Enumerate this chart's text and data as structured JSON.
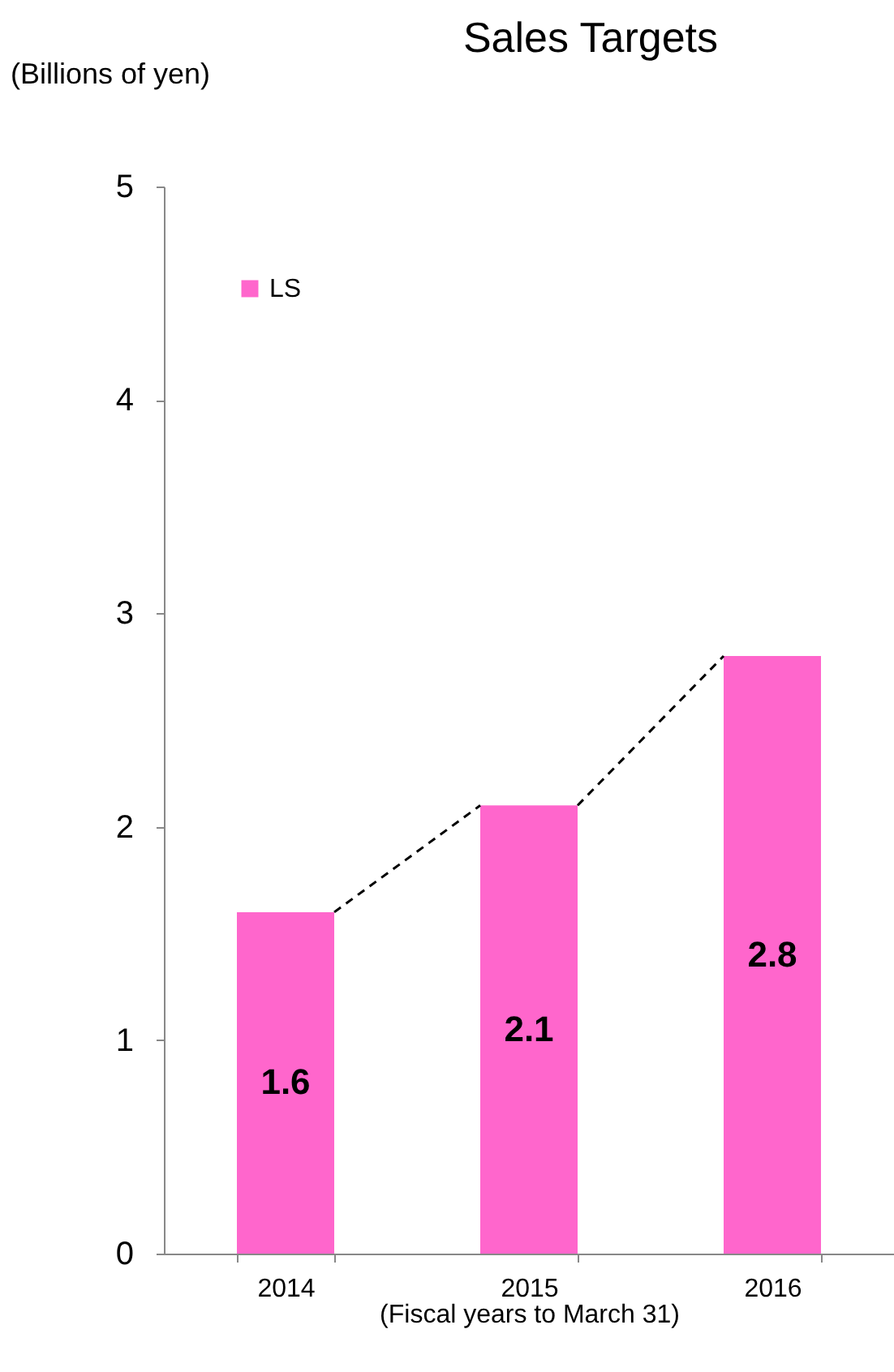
{
  "chart_data": {
    "type": "bar",
    "title": "Sales Targets",
    "ylabel": "(Billions of yen)",
    "xlabel": "(Fiscal years to March 31)",
    "categories": [
      "2014",
      "2015",
      "2016"
    ],
    "series": [
      {
        "name": "LS",
        "color": "#ff66cc",
        "values": [
          1.6,
          2.1,
          2.8
        ]
      }
    ],
    "ylim": [
      0,
      5
    ],
    "yticks": [
      0,
      1,
      2,
      3,
      4,
      5
    ],
    "grid": false,
    "legend": "top left",
    "data_labels": true
  }
}
